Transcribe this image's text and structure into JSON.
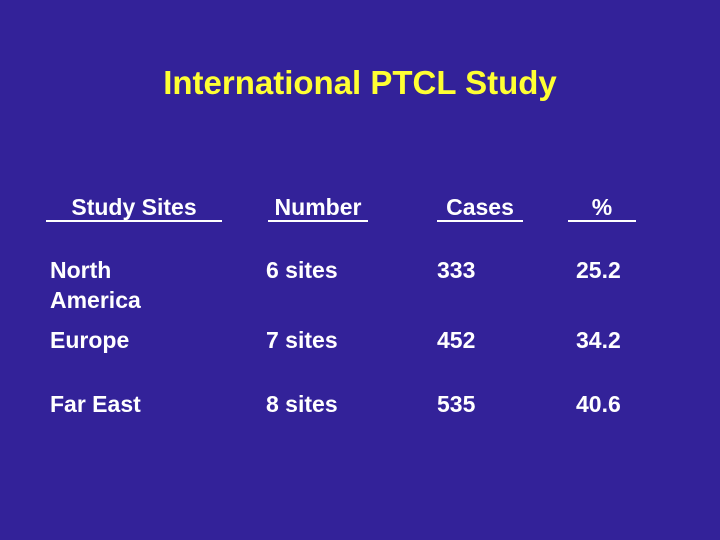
{
  "slide": {
    "title": "International PTCL Study",
    "colors": {
      "background": "#332299",
      "title": "#FFFF33",
      "text": "#FFFFFF"
    }
  },
  "table": {
    "headers": [
      "Study Sites",
      "Number",
      "Cases",
      "%"
    ],
    "rows": [
      {
        "site": "North\nAmerica",
        "number": "6 sites",
        "cases": "333",
        "percent": "25.2"
      },
      {
        "site": "Europe",
        "number": "7 sites",
        "cases": "452",
        "percent": "34.2"
      },
      {
        "site": "Far East",
        "number": "8 sites",
        "cases": "535",
        "percent": "40.6"
      }
    ]
  }
}
